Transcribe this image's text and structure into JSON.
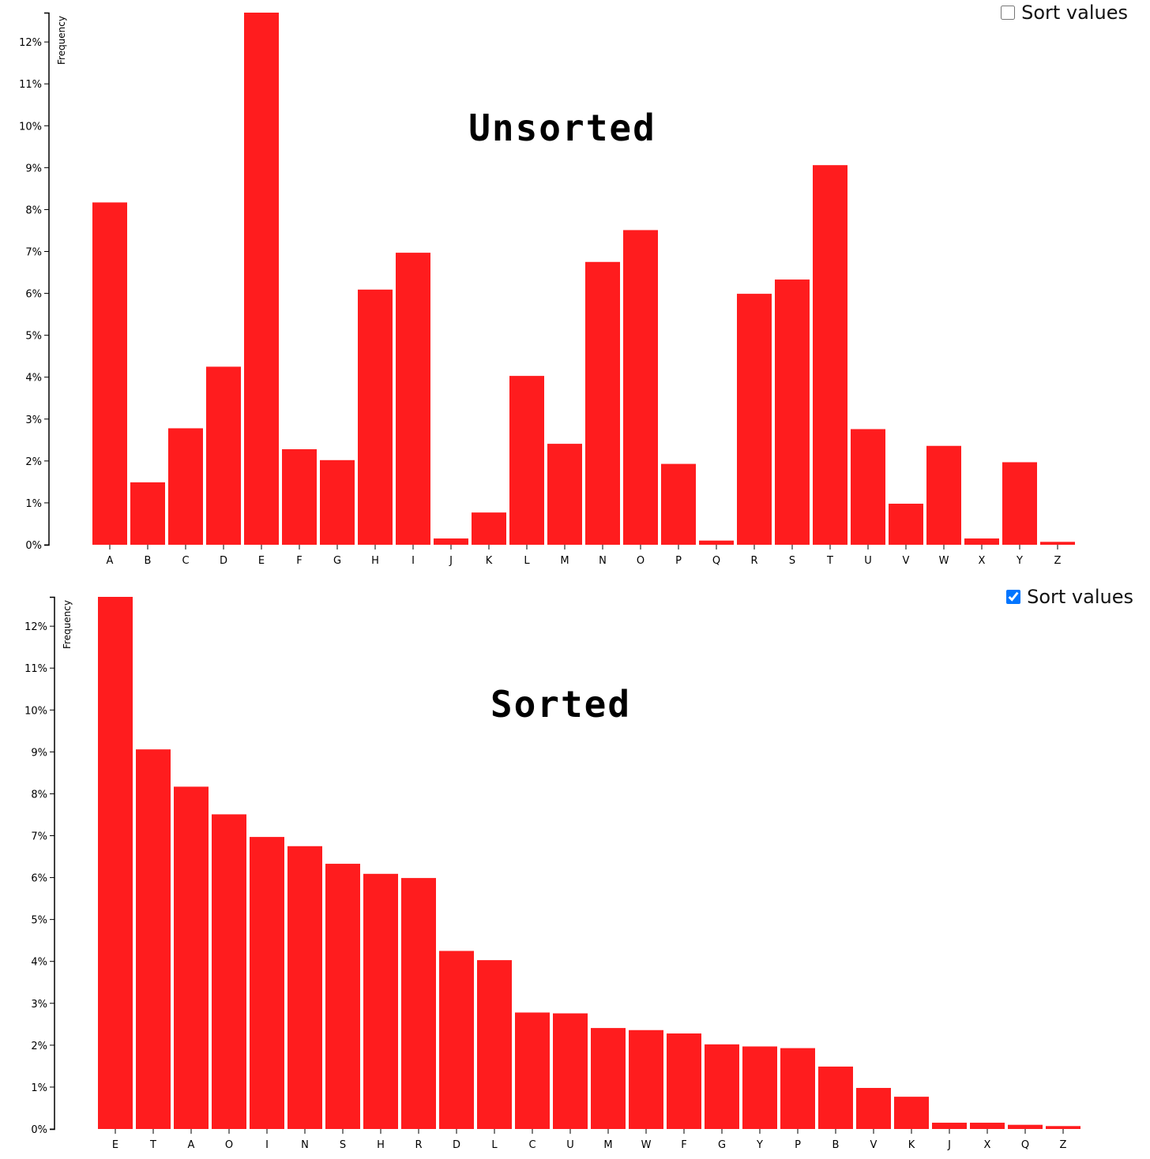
{
  "controls": {
    "top": {
      "label": "Sort values",
      "checked": false
    },
    "bottom": {
      "label": "Sort values",
      "checked": true
    }
  },
  "colors": {
    "bar": "#ff1c1e",
    "axis": "#000000",
    "background": "#ffffff"
  },
  "chart_data": [
    {
      "type": "bar",
      "title": "Unsorted",
      "ylabel": "Frequency",
      "xlabel": "",
      "ylim": [
        0,
        12.7
      ],
      "yticks": [
        "0%",
        "1%",
        "2%",
        "3%",
        "4%",
        "5%",
        "6%",
        "7%",
        "8%",
        "9%",
        "10%",
        "11%",
        "12%"
      ],
      "categories": [
        "A",
        "B",
        "C",
        "D",
        "E",
        "F",
        "G",
        "H",
        "I",
        "J",
        "K",
        "L",
        "M",
        "N",
        "O",
        "P",
        "Q",
        "R",
        "S",
        "T",
        "U",
        "V",
        "W",
        "X",
        "Y",
        "Z"
      ],
      "values": [
        8.17,
        1.49,
        2.78,
        4.25,
        12.7,
        2.28,
        2.02,
        6.09,
        6.97,
        0.15,
        0.77,
        4.03,
        2.41,
        6.75,
        7.51,
        1.93,
        0.1,
        5.99,
        6.33,
        9.06,
        2.76,
        0.98,
        2.36,
        0.15,
        1.97,
        0.07
      ],
      "grid": false
    },
    {
      "type": "bar",
      "title": "Sorted",
      "ylabel": "Frequency",
      "xlabel": "",
      "ylim": [
        0,
        12.7
      ],
      "yticks": [
        "0%",
        "1%",
        "2%",
        "3%",
        "4%",
        "5%",
        "6%",
        "7%",
        "8%",
        "9%",
        "10%",
        "11%",
        "12%"
      ],
      "categories": [
        "E",
        "T",
        "A",
        "O",
        "I",
        "N",
        "S",
        "H",
        "R",
        "D",
        "L",
        "C",
        "U",
        "M",
        "W",
        "F",
        "G",
        "Y",
        "P",
        "B",
        "V",
        "K",
        "J",
        "X",
        "Q",
        "Z"
      ],
      "values": [
        12.7,
        9.06,
        8.17,
        7.51,
        6.97,
        6.75,
        6.33,
        6.09,
        5.99,
        4.25,
        4.03,
        2.78,
        2.76,
        2.41,
        2.36,
        2.28,
        2.02,
        1.97,
        1.93,
        1.49,
        0.98,
        0.77,
        0.15,
        0.15,
        0.1,
        0.07
      ],
      "grid": false
    }
  ]
}
